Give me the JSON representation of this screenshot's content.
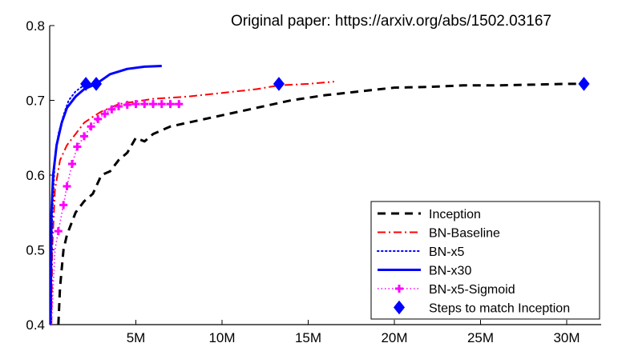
{
  "annotation": "Original paper: https://arxiv.org/abs/1502.03167",
  "chart_data": {
    "type": "line",
    "title": "",
    "xlabel": "",
    "ylabel": "",
    "xlim": [
      0,
      32000000
    ],
    "ylim": [
      0.4,
      0.8
    ],
    "x_ticks": [
      5000000,
      10000000,
      15000000,
      20000000,
      25000000,
      30000000
    ],
    "x_tick_labels": [
      "5M",
      "10M",
      "15M",
      "20M",
      "25M",
      "30M"
    ],
    "y_ticks": [
      0.4,
      0.5,
      0.6,
      0.7,
      0.8
    ],
    "y_tick_labels": [
      "0.4",
      "0.5",
      "0.6",
      "0.7",
      "0.8"
    ],
    "legend_position": "bottom-right",
    "series": [
      {
        "name": "Inception",
        "color": "#000000",
        "style": "dashed",
        "points": [
          [
            500000,
            0.4
          ],
          [
            600000,
            0.45
          ],
          [
            800000,
            0.5
          ],
          [
            1000000,
            0.52
          ],
          [
            1500000,
            0.55
          ],
          [
            2000000,
            0.565
          ],
          [
            2500000,
            0.575
          ],
          [
            3000000,
            0.6
          ],
          [
            3500000,
            0.605
          ],
          [
            4000000,
            0.62
          ],
          [
            4500000,
            0.63
          ],
          [
            5000000,
            0.65
          ],
          [
            5500000,
            0.645
          ],
          [
            6000000,
            0.655
          ],
          [
            7000000,
            0.665
          ],
          [
            8000000,
            0.67
          ],
          [
            10000000,
            0.68
          ],
          [
            12000000,
            0.69
          ],
          [
            14000000,
            0.7
          ],
          [
            16000000,
            0.707
          ],
          [
            18000000,
            0.712
          ],
          [
            20000000,
            0.717
          ],
          [
            22000000,
            0.718
          ],
          [
            24000000,
            0.72
          ],
          [
            26000000,
            0.72
          ],
          [
            28000000,
            0.721
          ],
          [
            30000000,
            0.722
          ],
          [
            31000000,
            0.722
          ]
        ]
      },
      {
        "name": "BN-Baseline",
        "color": "#ff0000",
        "style": "dashdot",
        "points": [
          [
            100000,
            0.4
          ],
          [
            150000,
            0.5
          ],
          [
            300000,
            0.58
          ],
          [
            600000,
            0.62
          ],
          [
            1000000,
            0.64
          ],
          [
            1500000,
            0.655
          ],
          [
            2000000,
            0.67
          ],
          [
            2500000,
            0.678
          ],
          [
            3000000,
            0.685
          ],
          [
            4000000,
            0.695
          ],
          [
            6000000,
            0.702
          ],
          [
            8000000,
            0.705
          ],
          [
            10000000,
            0.71
          ],
          [
            12000000,
            0.715
          ],
          [
            13300000,
            0.72
          ],
          [
            15000000,
            0.722
          ],
          [
            16500000,
            0.725
          ]
        ]
      },
      {
        "name": "BN-x5",
        "color": "#0000ff",
        "style": "dotted",
        "points": [
          [
            80000,
            0.4
          ],
          [
            150000,
            0.55
          ],
          [
            300000,
            0.62
          ],
          [
            500000,
            0.655
          ],
          [
            800000,
            0.68
          ],
          [
            1100000,
            0.7
          ],
          [
            1500000,
            0.712
          ],
          [
            2100000,
            0.722
          ]
        ]
      },
      {
        "name": "BN-x30",
        "color": "#0000ff",
        "style": "solid",
        "points": [
          [
            50000,
            0.4
          ],
          [
            100000,
            0.55
          ],
          [
            200000,
            0.6
          ],
          [
            400000,
            0.64
          ],
          [
            700000,
            0.67
          ],
          [
            1000000,
            0.69
          ],
          [
            1500000,
            0.705
          ],
          [
            2000000,
            0.715
          ],
          [
            2700000,
            0.722
          ],
          [
            3500000,
            0.735
          ],
          [
            4500000,
            0.742
          ],
          [
            5500000,
            0.745
          ],
          [
            6500000,
            0.746
          ]
        ]
      },
      {
        "name": "BN-x5-Sigmoid",
        "color": "#ff00ff",
        "style": "dotted-plus",
        "points": [
          [
            100000,
            0.4
          ],
          [
            300000,
            0.5
          ],
          [
            500000,
            0.525
          ],
          [
            800000,
            0.56
          ],
          [
            1000000,
            0.585
          ],
          [
            1300000,
            0.615
          ],
          [
            1600000,
            0.638
          ],
          [
            2000000,
            0.652
          ],
          [
            2400000,
            0.665
          ],
          [
            2800000,
            0.675
          ],
          [
            3200000,
            0.682
          ],
          [
            3600000,
            0.688
          ],
          [
            4000000,
            0.692
          ],
          [
            4500000,
            0.694
          ],
          [
            5000000,
            0.695
          ],
          [
            5500000,
            0.695
          ],
          [
            6000000,
            0.695
          ],
          [
            6500000,
            0.695
          ],
          [
            7000000,
            0.695
          ],
          [
            7500000,
            0.695
          ]
        ]
      },
      {
        "name": "Steps to match Inception",
        "color": "#0000ff",
        "style": "marker-diamond",
        "points": [
          [
            2100000,
            0.722
          ],
          [
            2700000,
            0.722
          ],
          [
            13300000,
            0.722
          ],
          [
            31000000,
            0.722
          ]
        ]
      }
    ]
  }
}
